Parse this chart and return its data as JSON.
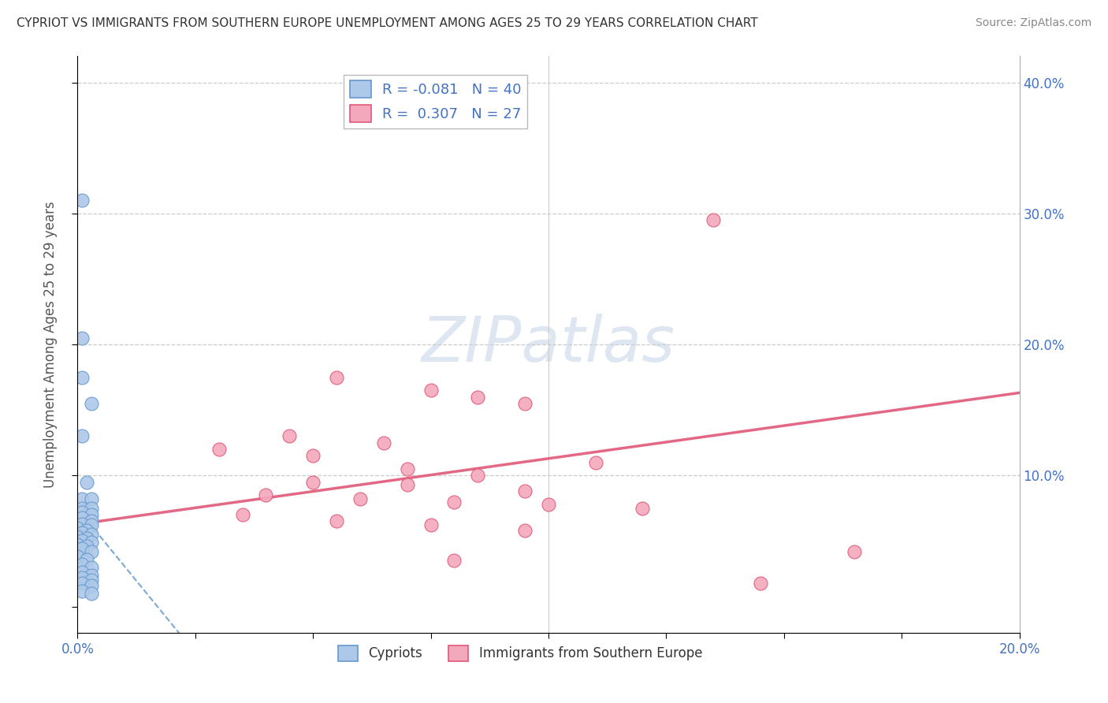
{
  "title": "CYPRIOT VS IMMIGRANTS FROM SOUTHERN EUROPE UNEMPLOYMENT AMONG AGES 25 TO 29 YEARS CORRELATION CHART",
  "source": "Source: ZipAtlas.com",
  "ylabel": "Unemployment Among Ages 25 to 29 years",
  "xlim": [
    0.0,
    0.2
  ],
  "ylim": [
    -0.02,
    0.42
  ],
  "plot_ylim": [
    0.0,
    0.4
  ],
  "xticks": [
    0.0,
    0.025,
    0.05,
    0.075,
    0.1,
    0.125,
    0.15,
    0.175,
    0.2
  ],
  "yticks": [
    0.0,
    0.1,
    0.2,
    0.3,
    0.4
  ],
  "blue_R": -0.081,
  "blue_N": 40,
  "pink_R": 0.307,
  "pink_N": 27,
  "blue_color": "#adc8e8",
  "pink_color": "#f4a8bc",
  "blue_edge_color": "#6699cc",
  "pink_edge_color": "#e05878",
  "blue_line_color": "#6699cc",
  "pink_line_color": "#e05878",
  "watermark_color": "#c8d8e8",
  "blue_dots": [
    [
      0.001,
      0.31
    ],
    [
      0.001,
      0.205
    ],
    [
      0.001,
      0.175
    ],
    [
      0.003,
      0.155
    ],
    [
      0.001,
      0.13
    ],
    [
      0.002,
      0.095
    ],
    [
      0.001,
      0.082
    ],
    [
      0.003,
      0.082
    ],
    [
      0.001,
      0.075
    ],
    [
      0.003,
      0.075
    ],
    [
      0.001,
      0.072
    ],
    [
      0.003,
      0.07
    ],
    [
      0.001,
      0.068
    ],
    [
      0.003,
      0.065
    ],
    [
      0.001,
      0.063
    ],
    [
      0.003,
      0.062
    ],
    [
      0.0,
      0.06
    ],
    [
      0.002,
      0.058
    ],
    [
      0.001,
      0.056
    ],
    [
      0.003,
      0.055
    ],
    [
      0.0,
      0.053
    ],
    [
      0.002,
      0.052
    ],
    [
      0.001,
      0.05
    ],
    [
      0.003,
      0.049
    ],
    [
      0.0,
      0.047
    ],
    [
      0.002,
      0.046
    ],
    [
      0.001,
      0.044
    ],
    [
      0.003,
      0.042
    ],
    [
      0.0,
      0.038
    ],
    [
      0.002,
      0.036
    ],
    [
      0.001,
      0.032
    ],
    [
      0.003,
      0.03
    ],
    [
      0.001,
      0.026
    ],
    [
      0.003,
      0.024
    ],
    [
      0.001,
      0.022
    ],
    [
      0.003,
      0.02
    ],
    [
      0.001,
      0.018
    ],
    [
      0.003,
      0.016
    ],
    [
      0.001,
      0.012
    ],
    [
      0.003,
      0.01
    ]
  ],
  "pink_dots": [
    [
      0.135,
      0.295
    ],
    [
      0.055,
      0.175
    ],
    [
      0.075,
      0.165
    ],
    [
      0.085,
      0.16
    ],
    [
      0.095,
      0.155
    ],
    [
      0.045,
      0.13
    ],
    [
      0.065,
      0.125
    ],
    [
      0.03,
      0.12
    ],
    [
      0.05,
      0.115
    ],
    [
      0.11,
      0.11
    ],
    [
      0.07,
      0.105
    ],
    [
      0.085,
      0.1
    ],
    [
      0.05,
      0.095
    ],
    [
      0.07,
      0.093
    ],
    [
      0.095,
      0.088
    ],
    [
      0.04,
      0.085
    ],
    [
      0.06,
      0.082
    ],
    [
      0.08,
      0.08
    ],
    [
      0.1,
      0.078
    ],
    [
      0.12,
      0.075
    ],
    [
      0.035,
      0.07
    ],
    [
      0.055,
      0.065
    ],
    [
      0.075,
      0.062
    ],
    [
      0.095,
      0.058
    ],
    [
      0.165,
      0.042
    ],
    [
      0.08,
      0.035
    ],
    [
      0.145,
      0.018
    ]
  ]
}
